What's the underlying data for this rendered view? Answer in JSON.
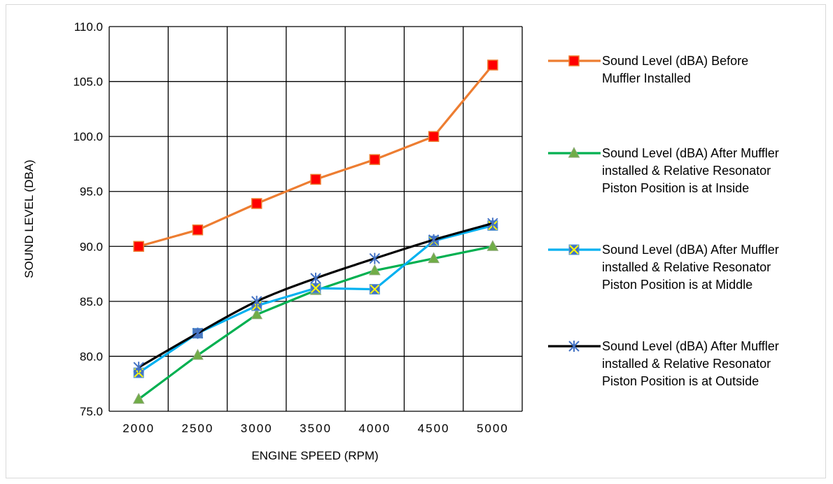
{
  "chart_data": {
    "type": "line",
    "xlabel": "ENGINE SPEED (RPM)",
    "ylabel": "SOUND LEVEL (DBA)",
    "categories": [
      "2000",
      "2500",
      "3000",
      "3500",
      "4000",
      "4500",
      "5000"
    ],
    "ylim": [
      75.0,
      110.0
    ],
    "yticks": [
      "75.0",
      "80.0",
      "85.0",
      "90.0",
      "95.0",
      "100.0",
      "105.0",
      "110.0"
    ],
    "grid": "on",
    "legend_position": "right",
    "series": [
      {
        "name": "Sound Level (dBA) Before Muffler Installed",
        "name_lines": [
          "Sound Level (dBA) Before",
          "Muffler Installed"
        ],
        "color": "#ed7d31",
        "marker": "square",
        "marker_fill": "#ff0000",
        "values": [
          90.0,
          91.5,
          93.9,
          96.1,
          97.9,
          100.0,
          106.5
        ]
      },
      {
        "name": "Sound Level (dBA) After Muffler installed & Relative Resonator Piston Position is at Inside",
        "name_lines": [
          "Sound Level (dBA) After Muffler",
          "installed & Relative Resonator",
          "Piston Position is at Inside"
        ],
        "color": "#00b050",
        "marker": "triangle",
        "marker_fill": "#70ad47",
        "values": [
          76.1,
          80.1,
          83.8,
          86.0,
          87.8,
          88.9,
          90.0
        ]
      },
      {
        "name": "Sound Level (dBA) After Muffler installed & Relative Resonator Piston Position is at Middle",
        "name_lines": [
          "Sound Level (dBA) After Muffler",
          "installed & Relative Resonator",
          "Piston Position is at Middle"
        ],
        "color": "#00b0f0",
        "marker": "square-x",
        "marker_fill": "#4472c4",
        "values": [
          78.5,
          82.1,
          84.6,
          86.2,
          86.1,
          90.5,
          91.9
        ]
      },
      {
        "name": "Sound Level (dBA) After Muffler installed & Relative Resonator Piston Position is at Outside",
        "name_lines": [
          "Sound Level (dBA) After Muffler",
          "installed & Relative Resonator",
          "Piston Position is at Outside"
        ],
        "color": "#000000",
        "marker": "star",
        "marker_fill": "#4472c4",
        "values": [
          79.0,
          82.1,
          85.0,
          87.1,
          88.9,
          90.6,
          92.1
        ]
      }
    ]
  }
}
